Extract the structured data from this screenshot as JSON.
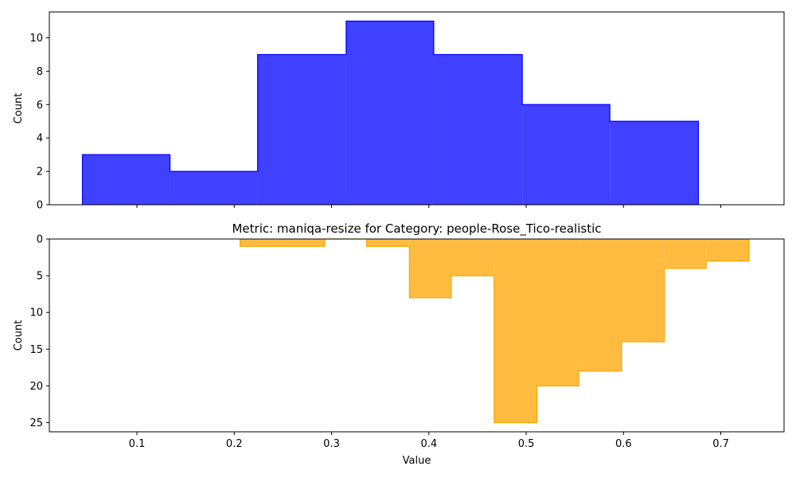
{
  "chart_data": [
    {
      "type": "histogram",
      "title": "",
      "xlabel": "",
      "ylabel": "Count",
      "color": "#0000ff",
      "fill_alpha": 0.75,
      "bin_edges": [
        0.044,
        0.134,
        0.224,
        0.315,
        0.405,
        0.496,
        0.586,
        0.677
      ],
      "counts": [
        3,
        2,
        9,
        11,
        9,
        6,
        5
      ],
      "xlim": [
        0.01,
        0.765
      ],
      "ylim": [
        0,
        11.55
      ],
      "y_inverted": false,
      "yticks": [
        "0",
        "2",
        "4",
        "6",
        "8",
        "10"
      ],
      "show_xtick_labels": false
    },
    {
      "type": "histogram",
      "title": "Metric: maniqa-resize for Category: people-Rose_Tico-realistic",
      "xlabel": "Value",
      "ylabel": "Count",
      "color": "#ffa500",
      "fill_alpha": 0.75,
      "bin_edges": [
        0.206,
        0.249,
        0.293,
        0.336,
        0.38,
        0.423,
        0.467,
        0.511,
        0.554,
        0.598,
        0.642,
        0.685,
        0.729
      ],
      "counts": [
        1,
        1,
        0,
        1,
        8,
        5,
        25,
        20,
        18,
        14,
        4,
        3
      ],
      "xlim": [
        0.01,
        0.765
      ],
      "ylim": [
        26.25,
        0
      ],
      "y_inverted": true,
      "yticks": [
        "0",
        "5",
        "10",
        "15",
        "20",
        "25"
      ],
      "xticks": [
        "0.1",
        "0.2",
        "0.3",
        "0.4",
        "0.5",
        "0.6",
        "0.7"
      ],
      "show_xtick_labels": true
    }
  ]
}
